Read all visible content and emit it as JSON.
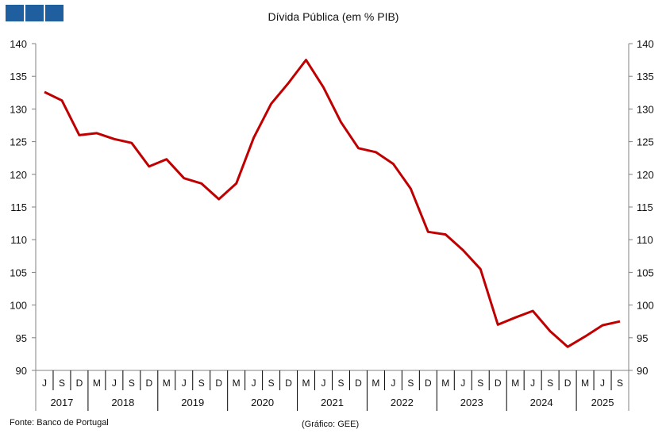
{
  "logo": {
    "squares": 3,
    "color": "#1f5fa0"
  },
  "chart_data": {
    "type": "line",
    "title": "Dívida Pública (em % PIB)",
    "source": "Fonte: Banco de Portugal",
    "credit": "(Gráfico: GEE)",
    "ylim": [
      90,
      140
    ],
    "yticks": [
      90,
      95,
      100,
      105,
      110,
      115,
      120,
      125,
      130,
      135,
      140
    ],
    "y_axis_sides": "left and right",
    "grid": false,
    "line_color": "#c00000",
    "years": [
      {
        "label": "2017",
        "quarters": [
          "J",
          "S",
          "D"
        ]
      },
      {
        "label": "2018",
        "quarters": [
          "M",
          "J",
          "S",
          "D"
        ]
      },
      {
        "label": "2019",
        "quarters": [
          "M",
          "J",
          "S",
          "D"
        ]
      },
      {
        "label": "2020",
        "quarters": [
          "M",
          "J",
          "S",
          "D"
        ]
      },
      {
        "label": "2021",
        "quarters": [
          "M",
          "J",
          "S",
          "D"
        ]
      },
      {
        "label": "2022",
        "quarters": [
          "M",
          "J",
          "S",
          "D"
        ]
      },
      {
        "label": "2023",
        "quarters": [
          "M",
          "J",
          "S",
          "D"
        ]
      },
      {
        "label": "2024",
        "quarters": [
          "M",
          "J",
          "S",
          "D"
        ]
      },
      {
        "label": "2025",
        "quarters": [
          "M",
          "J",
          "S"
        ]
      }
    ],
    "values": [
      132.6,
      131.3,
      126.0,
      126.3,
      125.4,
      124.8,
      121.2,
      122.3,
      119.4,
      118.6,
      116.2,
      118.6,
      125.6,
      130.8,
      134.0,
      137.5,
      133.3,
      128.0,
      124.0,
      123.4,
      121.6,
      117.8,
      111.2,
      110.8,
      108.4,
      105.5,
      97.0,
      98.1,
      99.1,
      96.0,
      93.6,
      95.2,
      96.9,
      97.5
    ]
  }
}
